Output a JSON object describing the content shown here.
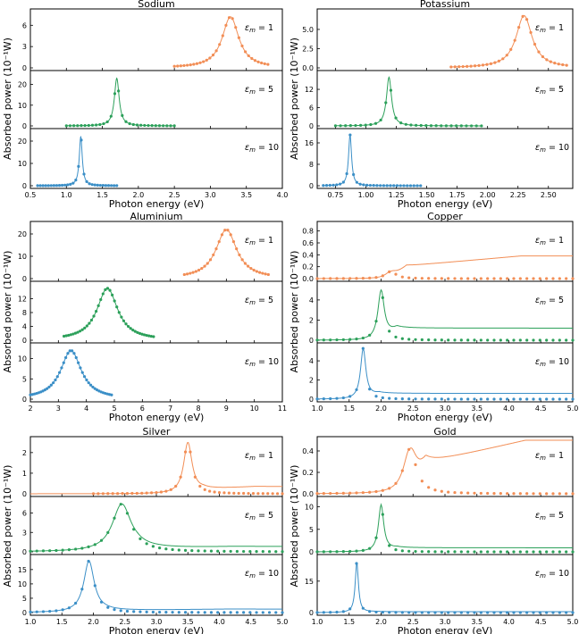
{
  "colors": {
    "orange": "#f28e56",
    "green": "#2ca05a",
    "blue": "#3b8fc7"
  },
  "chart_data": [
    {
      "type": "line",
      "title": "Sodium",
      "xlabel": "Photon energy (eV)",
      "ylabel": "Absorbed power (10⁻¹W)",
      "xlim": [
        0.5,
        4.0
      ],
      "xticks": [
        "0.5",
        "1.0",
        "1.5",
        "2.0",
        "2.5",
        "3.0",
        "3.5",
        "4.0"
      ],
      "xtick_values": [
        0.5,
        1.0,
        1.5,
        2.0,
        2.5,
        3.0,
        3.5,
        4.0
      ],
      "legend": "none",
      "grid": false,
      "series": [
        {
          "label": "εm = 1",
          "eps": "1",
          "color": "orange",
          "peak_x": 3.28,
          "peak_y": 7.2,
          "width": 0.14,
          "x_range": [
            2.5,
            3.8
          ],
          "n_points": 30,
          "ylim": [
            0,
            7.8
          ],
          "yticks": [
            "0",
            "3",
            "6"
          ],
          "ytick_values": [
            0,
            3,
            6
          ]
        },
        {
          "label": "εm = 5",
          "eps": "5",
          "color": "green",
          "peak_x": 1.7,
          "peak_y": 23,
          "width": 0.04,
          "x_range": [
            1.0,
            2.5
          ],
          "n_points": 30,
          "ylim": [
            0,
            25
          ],
          "yticks": [
            "0",
            "10",
            "20"
          ],
          "ytick_values": [
            0,
            10,
            20
          ]
        },
        {
          "label": "εm = 10",
          "eps": "10",
          "color": "blue",
          "peak_x": 1.2,
          "peak_y": 22,
          "width": 0.025,
          "x_range": [
            0.6,
            1.7
          ],
          "n_points": 30,
          "ylim": [
            0,
            24
          ],
          "yticks": [
            "0",
            "10",
            "20"
          ],
          "ytick_values": [
            0,
            10,
            20
          ]
        }
      ]
    },
    {
      "type": "line",
      "title": "Potassium",
      "xlabel": "",
      "ylabel": "",
      "xlim": [
        0.6,
        2.7
      ],
      "xticks": [
        "0.75",
        "1.00",
        "1.25",
        "1.50",
        "1.75",
        "2.00",
        "2.25",
        "2.50"
      ],
      "xtick_values": [
        0.75,
        1.0,
        1.25,
        1.5,
        1.75,
        2.0,
        2.25,
        2.5
      ],
      "legend": "none",
      "grid": false,
      "series": [
        {
          "label": "εm = 1",
          "eps": "1",
          "color": "orange",
          "peak_x": 2.3,
          "peak_y": 6.8,
          "width": 0.08,
          "x_range": [
            1.7,
            2.65
          ],
          "n_points": 30,
          "ylim": [
            0,
            7.2
          ],
          "yticks": [
            "0.0",
            "2.5",
            "5.0"
          ],
          "ytick_values": [
            0,
            2.5,
            5
          ]
        },
        {
          "label": "εm = 5",
          "eps": "5",
          "color": "green",
          "peak_x": 1.19,
          "peak_y": 16,
          "width": 0.025,
          "x_range": [
            0.75,
            1.95
          ],
          "n_points": 30,
          "ylim": [
            0,
            17
          ],
          "yticks": [
            "0",
            "6",
            "12"
          ],
          "ytick_values": [
            0,
            6,
            12
          ]
        },
        {
          "label": "εm = 10",
          "eps": "10",
          "color": "blue",
          "peak_x": 0.87,
          "peak_y": 19,
          "width": 0.015,
          "x_range": [
            0.65,
            1.45
          ],
          "n_points": 30,
          "ylim": [
            0,
            20
          ],
          "yticks": [
            "0",
            "8",
            "16"
          ],
          "ytick_values": [
            0,
            8,
            16
          ]
        }
      ]
    },
    {
      "type": "line",
      "title": "Aluminium",
      "xlabel": "Photon energy (eV)",
      "ylabel": "Absorbed power (10⁻¹W)",
      "xlim": [
        2,
        11
      ],
      "xticks": [
        "2",
        "3",
        "4",
        "5",
        "6",
        "7",
        "8",
        "9",
        "10",
        "11"
      ],
      "xtick_values": [
        2,
        3,
        4,
        5,
        6,
        7,
        8,
        9,
        10,
        11
      ],
      "legend": "none",
      "grid": false,
      "series": [
        {
          "label": "εm = 1",
          "eps": "1",
          "color": "orange",
          "peak_x": 9.0,
          "peak_y": 22,
          "width": 0.45,
          "x_range": [
            7.5,
            10.5
          ],
          "n_points": 30,
          "ylim": [
            0,
            24
          ],
          "yticks": [
            "0",
            "10",
            "20"
          ],
          "ytick_values": [
            0,
            10,
            20
          ]
        },
        {
          "label": "εm = 5",
          "eps": "5",
          "color": "green",
          "peak_x": 4.75,
          "peak_y": 15,
          "width": 0.45,
          "x_range": [
            3.2,
            6.4
          ],
          "n_points": 40,
          "ylim": [
            0,
            16
          ],
          "yticks": [
            "0",
            "4",
            "8",
            "12"
          ],
          "ytick_values": [
            0,
            4,
            8,
            12
          ]
        },
        {
          "label": "εm = 10",
          "eps": "10",
          "color": "blue",
          "peak_x": 3.45,
          "peak_y": 12,
          "width": 0.45,
          "x_range": [
            2.0,
            4.9
          ],
          "n_points": 40,
          "ylim": [
            0,
            13
          ],
          "yticks": [
            "0",
            "5",
            "10"
          ],
          "ytick_values": [
            0,
            5,
            10
          ]
        }
      ]
    },
    {
      "type": "line",
      "title": "Copper",
      "xlabel": "",
      "ylabel": "",
      "xlim": [
        1.0,
        5.0
      ],
      "xticks": [
        "1.0",
        "1.5",
        "2.0",
        "2.5",
        "3.0",
        "3.5",
        "4.0",
        "4.5",
        "5.0"
      ],
      "xtick_values": [
        1.0,
        1.5,
        2.0,
        2.5,
        3.0,
        3.5,
        4.0,
        4.5,
        5.0
      ],
      "legend": "none",
      "grid": false,
      "series": [
        {
          "label": "εm = 1",
          "eps": "1",
          "color": "orange",
          "peak_x": 2.15,
          "peak_y": 0.12,
          "width": 0.1,
          "x_range": [
            1.0,
            5.0
          ],
          "n_points": 40,
          "ylim": [
            0,
            0.9
          ],
          "yticks": [
            "0.0",
            "0.2",
            "0.4",
            "0.6",
            "0.8"
          ],
          "ytick_values": [
            0,
            0.2,
            0.4,
            0.6,
            0.8
          ],
          "tail": "rising-0.38"
        },
        {
          "label": "εm = 5",
          "eps": "5",
          "color": "green",
          "peak_x": 2.0,
          "peak_y": 5.0,
          "width": 0.06,
          "x_range": [
            1.0,
            5.0
          ],
          "n_points": 40,
          "ylim": [
            0,
            5.5
          ],
          "yticks": [
            "0",
            "2",
            "4"
          ],
          "ytick_values": [
            0,
            2,
            4
          ],
          "tail": "flat-1.2"
        },
        {
          "label": "εm = 10",
          "eps": "10",
          "color": "blue",
          "peak_x": 1.72,
          "peak_y": 5.3,
          "width": 0.05,
          "x_range": [
            1.0,
            5.0
          ],
          "n_points": 40,
          "ylim": [
            0,
            5.5
          ],
          "yticks": [
            "0",
            "2",
            "4"
          ],
          "ytick_values": [
            0,
            2,
            4
          ],
          "tail": "flat-0.6"
        }
      ]
    },
    {
      "type": "line",
      "title": "Silver",
      "xlabel": "Photon energy (eV)",
      "ylabel": "Absorbed power (10⁻¹W)",
      "xlim": [
        1.0,
        5.0
      ],
      "xticks": [
        "1.0",
        "1.5",
        "2.0",
        "2.5",
        "3.0",
        "3.5",
        "4.0",
        "4.5",
        "5.0"
      ],
      "xtick_values": [
        1.0,
        1.5,
        2.0,
        2.5,
        3.0,
        3.5,
        4.0,
        4.5,
        5.0
      ],
      "legend": "none",
      "grid": false,
      "series": [
        {
          "label": "εm = 1",
          "eps": "1",
          "color": "orange",
          "peak_x": 3.5,
          "peak_y": 2.5,
          "width": 0.08,
          "x_range": [
            2.0,
            5.0
          ],
          "n_points": 40,
          "ylim": [
            0,
            2.6
          ],
          "yticks": [
            "0",
            "1",
            "2"
          ],
          "ytick_values": [
            0,
            1,
            2
          ],
          "tail": "rising-0.35"
        },
        {
          "label": "εm = 5",
          "eps": "5",
          "color": "green",
          "peak_x": 2.45,
          "peak_y": 7.4,
          "width": 0.18,
          "x_range": [
            1.0,
            5.0
          ],
          "n_points": 40,
          "ylim": [
            0,
            8
          ],
          "yticks": [
            "0",
            "3",
            "6"
          ],
          "ytick_values": [
            0,
            3,
            6
          ],
          "tail": "rising-0.8"
        },
        {
          "label": "εm = 10",
          "eps": "10",
          "color": "blue",
          "peak_x": 1.93,
          "peak_y": 18,
          "width": 0.1,
          "x_range": [
            1.0,
            5.0
          ],
          "n_points": 40,
          "ylim": [
            0,
            19
          ],
          "yticks": [
            "0",
            "5",
            "10",
            "15"
          ],
          "ytick_values": [
            0,
            5,
            10,
            15
          ],
          "tail": "rising-1.2"
        }
      ]
    },
    {
      "type": "line",
      "title": "Gold",
      "xlabel": "Photon energy (eV)",
      "ylabel": "",
      "xlim": [
        1.0,
        5.0
      ],
      "xticks": [
        "1.0",
        "1.5",
        "2.0",
        "2.5",
        "3.0",
        "3.5",
        "4.0",
        "4.5",
        "5.0"
      ],
      "xtick_values": [
        1.0,
        1.5,
        2.0,
        2.5,
        3.0,
        3.5,
        4.0,
        4.5,
        5.0
      ],
      "legend": "none",
      "grid": false,
      "series": [
        {
          "label": "εm = 1",
          "eps": "1",
          "color": "orange",
          "peak_x": 2.45,
          "peak_y": 0.42,
          "width": 0.12,
          "x_range": [
            1.0,
            5.0
          ],
          "n_points": 40,
          "ylim": [
            0,
            0.5
          ],
          "yticks": [
            "0.0",
            "0.2",
            "0.4"
          ],
          "ytick_values": [
            0,
            0.2,
            0.4
          ],
          "tail": "rising-0.5"
        },
        {
          "label": "εm = 5",
          "eps": "5",
          "color": "green",
          "peak_x": 2.0,
          "peak_y": 10.5,
          "width": 0.05,
          "x_range": [
            1.0,
            5.0
          ],
          "n_points": 40,
          "ylim": [
            0,
            11.5
          ],
          "yticks": [
            "0",
            "5",
            "10"
          ],
          "ytick_values": [
            0,
            5,
            10
          ],
          "tail": "flat-0.9"
        },
        {
          "label": "εm = 10",
          "eps": "10",
          "color": "blue",
          "peak_x": 1.62,
          "peak_y": 24,
          "width": 0.03,
          "x_range": [
            1.0,
            5.0
          ],
          "n_points": 40,
          "ylim": [
            0,
            26
          ],
          "yticks": [
            "0",
            "15"
          ],
          "ytick_values": [
            0,
            15
          ],
          "tail": "flat-0.4"
        }
      ]
    }
  ]
}
